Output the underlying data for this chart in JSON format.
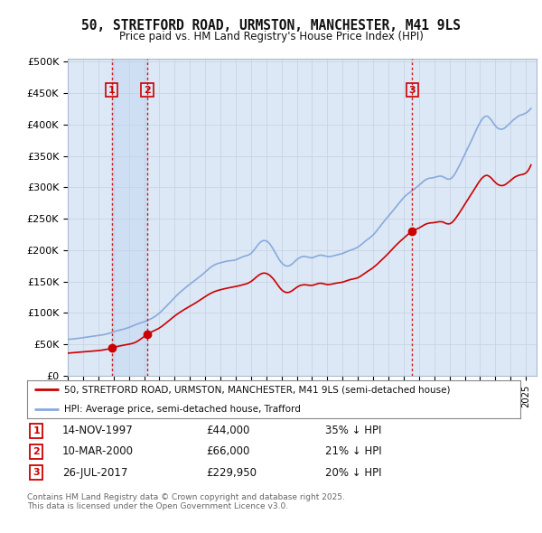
{
  "title": "50, STRETFORD ROAD, URMSTON, MANCHESTER, M41 9LS",
  "subtitle": "Price paid vs. HM Land Registry's House Price Index (HPI)",
  "background_color": "#ffffff",
  "plot_bg_color": "#dce8f5",
  "ylim": [
    0,
    500000
  ],
  "yticks": [
    0,
    50000,
    100000,
    150000,
    200000,
    250000,
    300000,
    350000,
    400000,
    450000,
    500000
  ],
  "ytick_labels": [
    "£0",
    "£50K",
    "£100K",
    "£150K",
    "£200K",
    "£250K",
    "£300K",
    "£350K",
    "£400K",
    "£450K",
    "£500K"
  ],
  "legend_house": "50, STRETFORD ROAD, URMSTON, MANCHESTER, M41 9LS (semi-detached house)",
  "legend_hpi": "HPI: Average price, semi-detached house, Trafford",
  "sale1_date": "14-NOV-1997",
  "sale1_price": 44000,
  "sale1_x": 1997.87,
  "sale1_pct": "35%",
  "sale2_date": "10-MAR-2000",
  "sale2_price": 66000,
  "sale2_x": 2000.21,
  "sale2_pct": "21%",
  "sale3_date": "26-JUL-2017",
  "sale3_price": 229950,
  "sale3_x": 2017.56,
  "sale3_pct": "20%",
  "footer": "Contains HM Land Registry data © Crown copyright and database right 2025.\nThis data is licensed under the Open Government Licence v3.0.",
  "house_color": "#cc0000",
  "hpi_color": "#88aadd",
  "vline_color": "#cc0000",
  "grid_color": "#c8d4e4",
  "shade_color": "#ccddf5"
}
